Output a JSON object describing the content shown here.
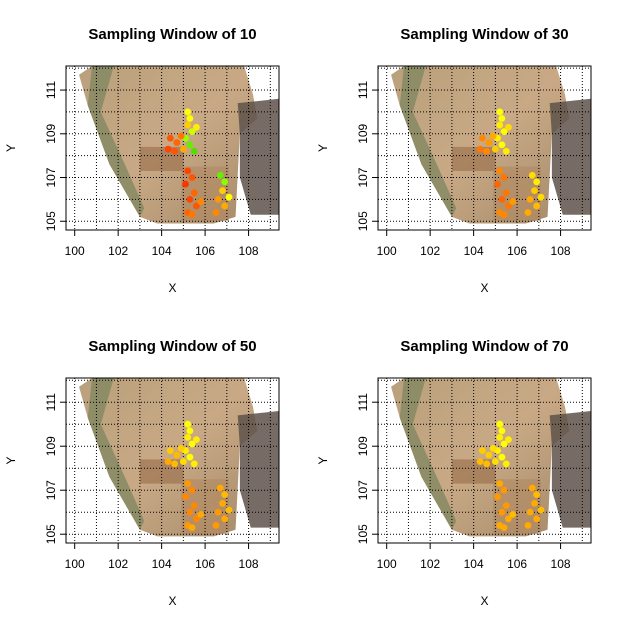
{
  "chart_data": [
    {
      "type": "scatter",
      "title": "Sampling Window of 10",
      "xlabel": "X",
      "ylabel": "Y",
      "xlim": [
        99.6,
        109.4
      ],
      "ylim": [
        104.6,
        112.1
      ],
      "xticks": [
        "100",
        "102",
        "104",
        "106",
        "108"
      ],
      "yticks": [
        "105",
        "107",
        "109",
        "111"
      ],
      "grid": true,
      "points": [
        {
          "x": 105.2,
          "y": 110.0,
          "color": "#ffff00"
        },
        {
          "x": 105.3,
          "y": 109.7,
          "color": "#ffff00"
        },
        {
          "x": 105.2,
          "y": 109.4,
          "color": "#ffcc00"
        },
        {
          "x": 105.4,
          "y": 109.1,
          "color": "#ccff00"
        },
        {
          "x": 105.1,
          "y": 108.8,
          "color": "#99ff00"
        },
        {
          "x": 105.3,
          "y": 108.5,
          "color": "#66ee00"
        },
        {
          "x": 105.5,
          "y": 108.2,
          "color": "#55dd00"
        },
        {
          "x": 105.6,
          "y": 109.3,
          "color": "#ffee00"
        },
        {
          "x": 105.0,
          "y": 108.3,
          "color": "#ffaa00"
        },
        {
          "x": 104.4,
          "y": 108.8,
          "color": "#ff5500"
        },
        {
          "x": 104.7,
          "y": 108.6,
          "color": "#ff6600"
        },
        {
          "x": 104.3,
          "y": 108.3,
          "color": "#ff4400"
        },
        {
          "x": 104.9,
          "y": 108.9,
          "color": "#ff7700"
        },
        {
          "x": 104.6,
          "y": 108.2,
          "color": "#ff5500"
        },
        {
          "x": 105.2,
          "y": 107.3,
          "color": "#ff4400"
        },
        {
          "x": 105.4,
          "y": 107.0,
          "color": "#ff5500"
        },
        {
          "x": 105.1,
          "y": 106.7,
          "color": "#ff3300"
        },
        {
          "x": 105.5,
          "y": 106.3,
          "color": "#ff6600"
        },
        {
          "x": 105.3,
          "y": 106.0,
          "color": "#ff4400"
        },
        {
          "x": 105.6,
          "y": 105.7,
          "color": "#ff5500"
        },
        {
          "x": 105.2,
          "y": 105.4,
          "color": "#ff6600"
        },
        {
          "x": 105.8,
          "y": 105.9,
          "color": "#ff8800"
        },
        {
          "x": 105.4,
          "y": 105.3,
          "color": "#ff7700"
        },
        {
          "x": 106.7,
          "y": 107.1,
          "color": "#66ee00"
        },
        {
          "x": 106.9,
          "y": 106.8,
          "color": "#88ff00"
        },
        {
          "x": 106.8,
          "y": 106.4,
          "color": "#ffcc00"
        },
        {
          "x": 106.6,
          "y": 106.0,
          "color": "#ff9900"
        },
        {
          "x": 106.9,
          "y": 105.7,
          "color": "#ffaa00"
        },
        {
          "x": 106.5,
          "y": 105.4,
          "color": "#ff8800"
        },
        {
          "x": 107.1,
          "y": 106.1,
          "color": "#ffff00"
        }
      ]
    },
    {
      "type": "scatter",
      "title": "Sampling Window of 30",
      "xlabel": "X",
      "ylabel": "Y",
      "xlim": [
        99.6,
        109.4
      ],
      "ylim": [
        104.6,
        112.1
      ],
      "xticks": [
        "100",
        "102",
        "104",
        "106",
        "108"
      ],
      "yticks": [
        "105",
        "107",
        "109",
        "111"
      ],
      "grid": true,
      "points": [
        {
          "x": 105.2,
          "y": 110.0,
          "color": "#ffff00"
        },
        {
          "x": 105.3,
          "y": 109.7,
          "color": "#ffff00"
        },
        {
          "x": 105.2,
          "y": 109.4,
          "color": "#ffee00"
        },
        {
          "x": 105.4,
          "y": 109.1,
          "color": "#ffff00"
        },
        {
          "x": 105.1,
          "y": 108.8,
          "color": "#ffee00"
        },
        {
          "x": 105.3,
          "y": 108.5,
          "color": "#ffff00"
        },
        {
          "x": 105.5,
          "y": 108.2,
          "color": "#ffee00"
        },
        {
          "x": 105.6,
          "y": 109.3,
          "color": "#ffdd00"
        },
        {
          "x": 105.0,
          "y": 108.3,
          "color": "#ffcc00"
        },
        {
          "x": 104.4,
          "y": 108.8,
          "color": "#ff8800"
        },
        {
          "x": 104.7,
          "y": 108.6,
          "color": "#ff9900"
        },
        {
          "x": 104.3,
          "y": 108.3,
          "color": "#ff7700"
        },
        {
          "x": 104.9,
          "y": 108.9,
          "color": "#ffaa00"
        },
        {
          "x": 104.6,
          "y": 108.2,
          "color": "#ff8800"
        },
        {
          "x": 105.2,
          "y": 107.3,
          "color": "#ff8800"
        },
        {
          "x": 105.4,
          "y": 107.0,
          "color": "#ff7700"
        },
        {
          "x": 105.1,
          "y": 106.7,
          "color": "#ff6600"
        },
        {
          "x": 105.5,
          "y": 106.3,
          "color": "#ff7700"
        },
        {
          "x": 105.3,
          "y": 106.0,
          "color": "#ff6600"
        },
        {
          "x": 105.6,
          "y": 105.7,
          "color": "#ff7700"
        },
        {
          "x": 105.2,
          "y": 105.4,
          "color": "#ff8800"
        },
        {
          "x": 105.8,
          "y": 105.9,
          "color": "#ff9900"
        },
        {
          "x": 105.4,
          "y": 105.3,
          "color": "#ff8800"
        },
        {
          "x": 106.7,
          "y": 107.1,
          "color": "#ffdd00"
        },
        {
          "x": 106.9,
          "y": 106.8,
          "color": "#ffee00"
        },
        {
          "x": 106.8,
          "y": 106.4,
          "color": "#ffcc00"
        },
        {
          "x": 106.6,
          "y": 106.0,
          "color": "#ffaa00"
        },
        {
          "x": 106.9,
          "y": 105.7,
          "color": "#ffbb00"
        },
        {
          "x": 106.5,
          "y": 105.4,
          "color": "#ffaa00"
        },
        {
          "x": 107.1,
          "y": 106.1,
          "color": "#ffdd00"
        }
      ]
    },
    {
      "type": "scatter",
      "title": "Sampling Window of 50",
      "xlabel": "X",
      "ylabel": "Y",
      "xlim": [
        99.6,
        109.4
      ],
      "ylim": [
        104.6,
        112.1
      ],
      "xticks": [
        "100",
        "102",
        "104",
        "106",
        "108"
      ],
      "yticks": [
        "105",
        "107",
        "109",
        "111"
      ],
      "grid": true,
      "points": [
        {
          "x": 105.2,
          "y": 110.0,
          "color": "#ffff00"
        },
        {
          "x": 105.3,
          "y": 109.7,
          "color": "#ffff00"
        },
        {
          "x": 105.2,
          "y": 109.4,
          "color": "#ffee00"
        },
        {
          "x": 105.4,
          "y": 109.1,
          "color": "#ffff00"
        },
        {
          "x": 105.1,
          "y": 108.8,
          "color": "#ffee00"
        },
        {
          "x": 105.3,
          "y": 108.5,
          "color": "#ffff00"
        },
        {
          "x": 105.5,
          "y": 108.2,
          "color": "#ffee00"
        },
        {
          "x": 105.6,
          "y": 109.3,
          "color": "#ffee00"
        },
        {
          "x": 105.0,
          "y": 108.3,
          "color": "#ffdd00"
        },
        {
          "x": 104.4,
          "y": 108.8,
          "color": "#ffcc00"
        },
        {
          "x": 104.7,
          "y": 108.6,
          "color": "#ffbb00"
        },
        {
          "x": 104.3,
          "y": 108.3,
          "color": "#ffaa00"
        },
        {
          "x": 104.9,
          "y": 108.9,
          "color": "#ffcc00"
        },
        {
          "x": 104.6,
          "y": 108.2,
          "color": "#ffbb00"
        },
        {
          "x": 105.2,
          "y": 107.3,
          "color": "#ff9900"
        },
        {
          "x": 105.4,
          "y": 107.0,
          "color": "#ff8800"
        },
        {
          "x": 105.1,
          "y": 106.7,
          "color": "#ff8800"
        },
        {
          "x": 105.5,
          "y": 106.3,
          "color": "#ff8800"
        },
        {
          "x": 105.3,
          "y": 106.0,
          "color": "#ff8800"
        },
        {
          "x": 105.6,
          "y": 105.7,
          "color": "#ff8800"
        },
        {
          "x": 105.2,
          "y": 105.4,
          "color": "#ff9900"
        },
        {
          "x": 105.8,
          "y": 105.9,
          "color": "#ffaa00"
        },
        {
          "x": 105.4,
          "y": 105.3,
          "color": "#ffaa00"
        },
        {
          "x": 106.7,
          "y": 107.1,
          "color": "#ffaa00"
        },
        {
          "x": 106.9,
          "y": 106.8,
          "color": "#ffbb00"
        },
        {
          "x": 106.8,
          "y": 106.4,
          "color": "#ffaa00"
        },
        {
          "x": 106.6,
          "y": 106.0,
          "color": "#ff9900"
        },
        {
          "x": 106.9,
          "y": 105.7,
          "color": "#ffaa00"
        },
        {
          "x": 106.5,
          "y": 105.4,
          "color": "#ff9900"
        },
        {
          "x": 107.1,
          "y": 106.1,
          "color": "#ffbb00"
        }
      ]
    },
    {
      "type": "scatter",
      "title": "Sampling Window of 70",
      "xlabel": "X",
      "ylabel": "Y",
      "xlim": [
        99.6,
        109.4
      ],
      "ylim": [
        104.6,
        112.1
      ],
      "xticks": [
        "100",
        "102",
        "104",
        "106",
        "108"
      ],
      "yticks": [
        "105",
        "107",
        "109",
        "111"
      ],
      "grid": true,
      "points": [
        {
          "x": 105.2,
          "y": 110.0,
          "color": "#ffff00"
        },
        {
          "x": 105.3,
          "y": 109.7,
          "color": "#ffff00"
        },
        {
          "x": 105.2,
          "y": 109.4,
          "color": "#ffee00"
        },
        {
          "x": 105.4,
          "y": 109.1,
          "color": "#ffff00"
        },
        {
          "x": 105.1,
          "y": 108.8,
          "color": "#ffee00"
        },
        {
          "x": 105.3,
          "y": 108.5,
          "color": "#ffff00"
        },
        {
          "x": 105.5,
          "y": 108.2,
          "color": "#ffee00"
        },
        {
          "x": 105.6,
          "y": 109.3,
          "color": "#ffee00"
        },
        {
          "x": 105.0,
          "y": 108.3,
          "color": "#ffdd00"
        },
        {
          "x": 104.4,
          "y": 108.8,
          "color": "#ffcc00"
        },
        {
          "x": 104.7,
          "y": 108.6,
          "color": "#ffcc00"
        },
        {
          "x": 104.3,
          "y": 108.3,
          "color": "#ffbb00"
        },
        {
          "x": 104.9,
          "y": 108.9,
          "color": "#ffdd00"
        },
        {
          "x": 104.6,
          "y": 108.2,
          "color": "#ffbb00"
        },
        {
          "x": 105.2,
          "y": 107.3,
          "color": "#ffaa00"
        },
        {
          "x": 105.4,
          "y": 107.0,
          "color": "#ff9900"
        },
        {
          "x": 105.1,
          "y": 106.7,
          "color": "#ff9900"
        },
        {
          "x": 105.5,
          "y": 106.3,
          "color": "#ff9900"
        },
        {
          "x": 105.3,
          "y": 106.0,
          "color": "#ff9900"
        },
        {
          "x": 105.6,
          "y": 105.7,
          "color": "#ffaa00"
        },
        {
          "x": 105.2,
          "y": 105.4,
          "color": "#ffaa00"
        },
        {
          "x": 105.8,
          "y": 105.9,
          "color": "#ffbb00"
        },
        {
          "x": 105.4,
          "y": 105.3,
          "color": "#ffaa00"
        },
        {
          "x": 106.7,
          "y": 107.1,
          "color": "#ffaa00"
        },
        {
          "x": 106.9,
          "y": 106.8,
          "color": "#ffbb00"
        },
        {
          "x": 106.8,
          "y": 106.4,
          "color": "#ffaa00"
        },
        {
          "x": 106.6,
          "y": 106.0,
          "color": "#ffaa00"
        },
        {
          "x": 106.9,
          "y": 105.7,
          "color": "#ffaa00"
        },
        {
          "x": 106.5,
          "y": 105.4,
          "color": "#ffaa00"
        },
        {
          "x": 107.1,
          "y": 106.1,
          "color": "#ffbb00"
        }
      ]
    }
  ]
}
